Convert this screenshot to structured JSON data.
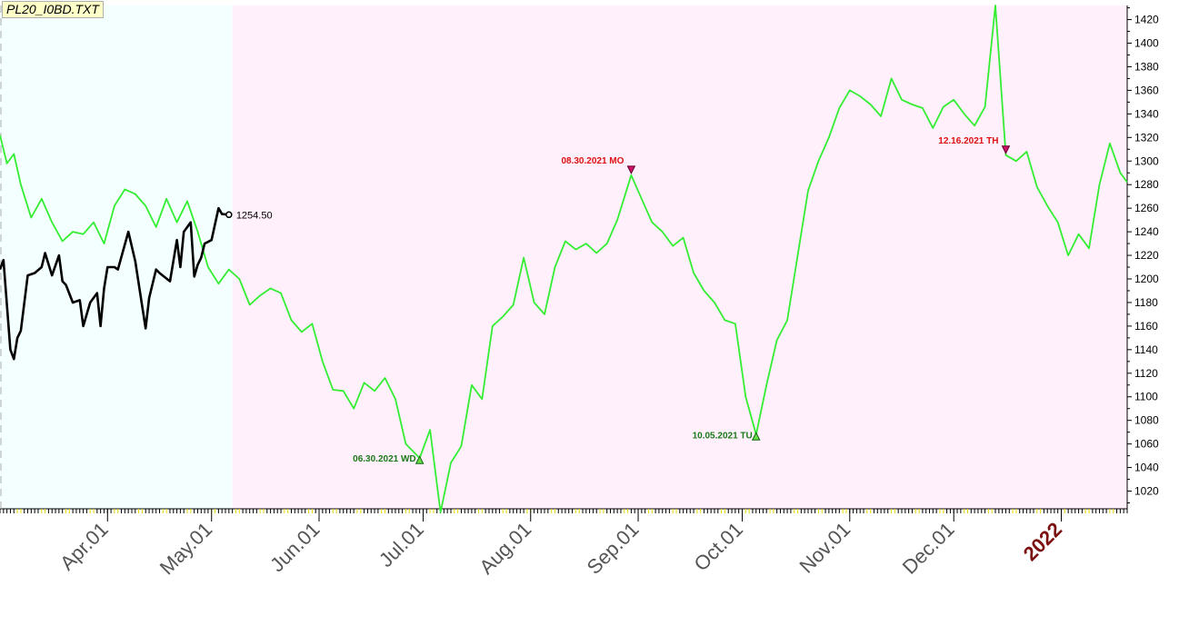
{
  "file_label": "PL20_I0BD.TXT",
  "chart_data": {
    "type": "line",
    "x_axis": {
      "labels": [
        "Apr.01",
        "May.01",
        "Jun.01",
        "Jul.01",
        "Aug.01",
        "Sep.01",
        "Oct.01",
        "Nov.01",
        "Dec.01",
        "2022"
      ],
      "year_label": "2022",
      "range": [
        "2021-03-01",
        "2022-01-20"
      ]
    },
    "y_axis": {
      "range": [
        1005,
        1432
      ],
      "ticks": [
        1020,
        1040,
        1060,
        1080,
        1100,
        1120,
        1140,
        1160,
        1180,
        1200,
        1220,
        1240,
        1260,
        1280,
        1300,
        1320,
        1340,
        1360,
        1380,
        1400,
        1420
      ],
      "side": "right"
    },
    "shaded_regions": [
      {
        "from": "2021-03-01",
        "to": "2021-05-07",
        "color": "#f4ffff"
      },
      {
        "from": "2021-05-07",
        "to": "2022-01-20",
        "color": "#fff0fb"
      }
    ],
    "series": [
      {
        "color": "#33ee33",
        "x": [
          "2021-03-01",
          "2021-03-03",
          "2021-03-05",
          "2021-03-07",
          "2021-03-10",
          "2021-03-13",
          "2021-03-16",
          "2021-03-19",
          "2021-03-22",
          "2021-03-25",
          "2021-03-28",
          "2021-03-31",
          "2021-04-03",
          "2021-04-06",
          "2021-04-09",
          "2021-04-12",
          "2021-04-15",
          "2021-04-18",
          "2021-04-21",
          "2021-04-24",
          "2021-04-27",
          "2021-04-30",
          "2021-05-03",
          "2021-05-06",
          "2021-05-09",
          "2021-05-12",
          "2021-05-15",
          "2021-05-18",
          "2021-05-21",
          "2021-05-24",
          "2021-05-27",
          "2021-05-30",
          "2021-06-02",
          "2021-06-05",
          "2021-06-08",
          "2021-06-11",
          "2021-06-14",
          "2021-06-17",
          "2021-06-20",
          "2021-06-23",
          "2021-06-26",
          "2021-06-30",
          "2021-07-03",
          "2021-07-06",
          "2021-07-09",
          "2021-07-12",
          "2021-07-15",
          "2021-07-18",
          "2021-07-21",
          "2021-07-24",
          "2021-07-27",
          "2021-07-30",
          "2021-08-02",
          "2021-08-05",
          "2021-08-08",
          "2021-08-11",
          "2021-08-14",
          "2021-08-17",
          "2021-08-20",
          "2021-08-23",
          "2021-08-26",
          "2021-08-30",
          "2021-09-02",
          "2021-09-05",
          "2021-09-08",
          "2021-09-11",
          "2021-09-14",
          "2021-09-17",
          "2021-09-20",
          "2021-09-23",
          "2021-09-26",
          "2021-09-29",
          "2021-10-02",
          "2021-10-05",
          "2021-10-08",
          "2021-10-11",
          "2021-10-14",
          "2021-10-17",
          "2021-10-20",
          "2021-10-23",
          "2021-10-26",
          "2021-10-29",
          "2021-11-01",
          "2021-11-04",
          "2021-11-07",
          "2021-11-10",
          "2021-11-13",
          "2021-11-16",
          "2021-11-19",
          "2021-11-22",
          "2021-11-25",
          "2021-11-28",
          "2021-12-01",
          "2021-12-04",
          "2021-12-07",
          "2021-12-10",
          "2021-12-13",
          "2021-12-16",
          "2021-12-19",
          "2021-12-22",
          "2021-12-25",
          "2021-12-28",
          "2021-12-31",
          "2022-01-03",
          "2022-01-06",
          "2022-01-09",
          "2022-01-12",
          "2022-01-15",
          "2022-01-18",
          "2022-01-20"
        ],
        "y": [
          1322,
          1298,
          1306,
          1280,
          1252,
          1268,
          1248,
          1232,
          1240,
          1238,
          1248,
          1230,
          1262,
          1276,
          1272,
          1262,
          1244,
          1268,
          1248,
          1266,
          1240,
          1210,
          1196,
          1208,
          1200,
          1178,
          1186,
          1192,
          1188,
          1165,
          1155,
          1162,
          1130,
          1106,
          1105,
          1090,
          1112,
          1105,
          1116,
          1098,
          1060,
          1048,
          1072,
          1002,
          1044,
          1058,
          1110,
          1098,
          1160,
          1168,
          1178,
          1218,
          1180,
          1170,
          1210,
          1232,
          1225,
          1230,
          1222,
          1230,
          1250,
          1288,
          1268,
          1248,
          1240,
          1228,
          1235,
          1205,
          1190,
          1180,
          1165,
          1162,
          1100,
          1068,
          1110,
          1148,
          1165,
          1220,
          1275,
          1300,
          1320,
          1345,
          1360,
          1355,
          1348,
          1338,
          1370,
          1352,
          1348,
          1345,
          1328,
          1346,
          1352,
          1340,
          1330,
          1346,
          1432,
          1305,
          1300,
          1308,
          1278,
          1262,
          1248,
          1220,
          1238,
          1226,
          1280,
          1315,
          1290,
          1282
        ],
        "annotations": [
          {
            "x": "2021-06-30",
            "label": "06.30.2021 WD",
            "kind": "low",
            "color": "#1a7a1a"
          },
          {
            "x": "2021-08-30",
            "label": "08.30.2021 MO",
            "kind": "high",
            "color": "#dd1111"
          },
          {
            "x": "2021-10-05",
            "label": "10.05.2021 TU",
            "kind": "low",
            "color": "#1a7a1a"
          },
          {
            "x": "2021-12-16",
            "label": "12.16.2021 TH",
            "kind": "high",
            "color": "#dd1111"
          }
        ]
      },
      {
        "color": "#000000",
        "x": [
          "2021-03-01",
          "2021-03-02",
          "2021-03-04",
          "2021-03-05",
          "2021-03-06",
          "2021-03-07",
          "2021-03-09",
          "2021-03-11",
          "2021-03-13",
          "2021-03-14",
          "2021-03-16",
          "2021-03-18",
          "2021-03-19",
          "2021-03-20",
          "2021-03-22",
          "2021-03-24",
          "2021-03-25",
          "2021-03-27",
          "2021-03-29",
          "2021-03-30",
          "2021-03-31",
          "2021-04-01",
          "2021-04-03",
          "2021-04-04",
          "2021-04-07",
          "2021-04-09",
          "2021-04-10",
          "2021-04-12",
          "2021-04-13",
          "2021-04-15",
          "2021-04-16",
          "2021-04-19",
          "2021-04-21",
          "2021-04-22",
          "2021-04-23",
          "2021-04-25",
          "2021-04-26",
          "2021-04-27",
          "2021-04-28",
          "2021-04-29",
          "2021-05-01",
          "2021-05-03",
          "2021-05-04",
          "2021-05-06"
        ],
        "y": [
          1208,
          1216,
          1140,
          1132,
          1150,
          1156,
          1203,
          1205,
          1210,
          1222,
          1203,
          1220,
          1198,
          1195,
          1180,
          1182,
          1160,
          1180,
          1188,
          1160,
          1192,
          1210,
          1210,
          1208,
          1240,
          1215,
          1196,
          1158,
          1184,
          1208,
          1205,
          1198,
          1233,
          1210,
          1240,
          1248,
          1202,
          1212,
          1218,
          1230,
          1233,
          1260,
          1255,
          1254.5
        ],
        "last_value": "1254.50"
      }
    ]
  }
}
